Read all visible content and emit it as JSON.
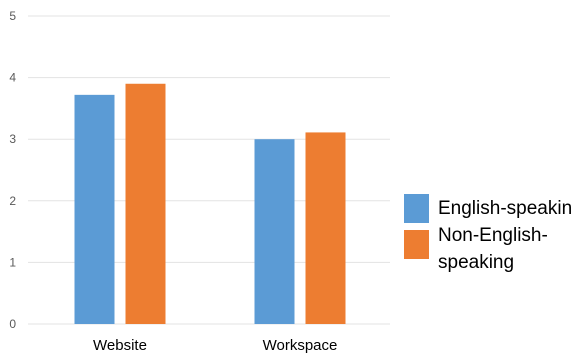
{
  "chart_data": {
    "type": "bar",
    "title": "",
    "xlabel": "",
    "ylabel": "",
    "ylim": [
      0,
      5
    ],
    "yticks": [
      0,
      1,
      2,
      3,
      4,
      5
    ],
    "grid": true,
    "legend_position": "right",
    "categories": [
      "Website",
      "Workspace"
    ],
    "series": [
      {
        "name": "English-speaking",
        "values": [
          3.72,
          3.0
        ],
        "color": "#5b9bd5"
      },
      {
        "name": "Non-English-speaking",
        "legend_lines": [
          "Non-English-",
          "speaking"
        ],
        "values": [
          3.9,
          3.11
        ],
        "color": "#ed7d31"
      }
    ]
  }
}
